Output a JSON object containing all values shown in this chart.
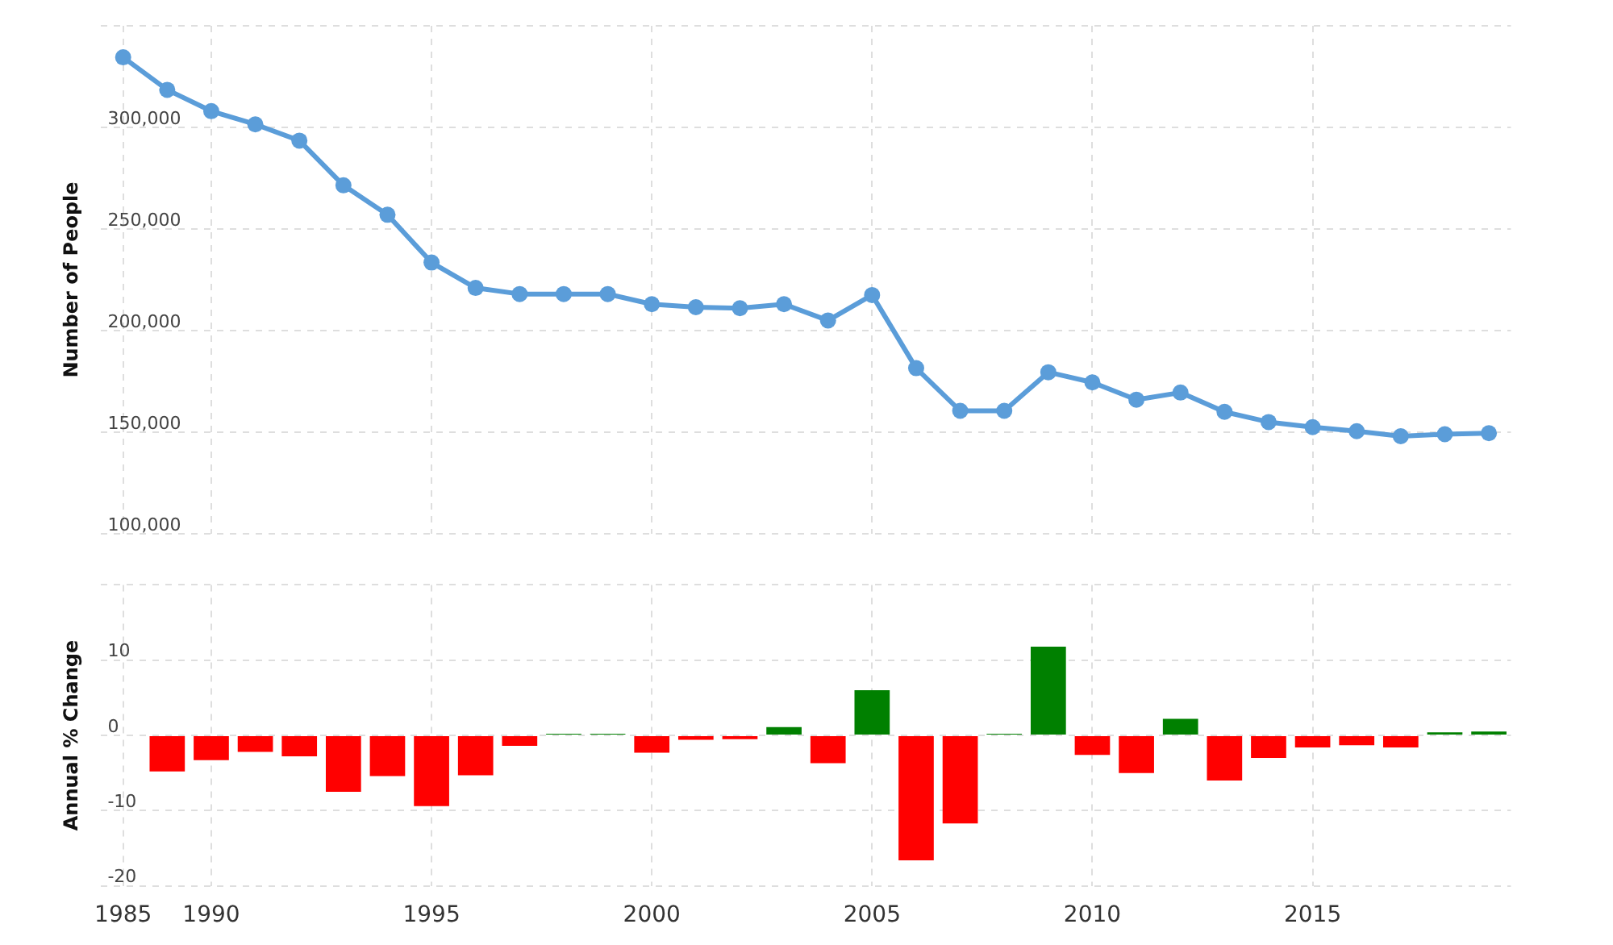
{
  "chart_data": [
    {
      "type": "line",
      "categories": [
        "1985",
        null,
        "1990",
        null,
        null,
        null,
        null,
        "1995",
        null,
        null,
        null,
        null,
        "2000",
        null,
        null,
        null,
        null,
        "2005",
        null,
        null,
        null,
        null,
        "2010",
        null,
        null,
        null,
        null,
        "2015",
        null,
        null,
        null,
        null
      ],
      "values": [
        334500,
        318500,
        308000,
        301500,
        293500,
        271500,
        257000,
        233500,
        221000,
        218000,
        218000,
        218000,
        213000,
        211500,
        211000,
        213000,
        205000,
        217500,
        181500,
        160500,
        160500,
        179500,
        174500,
        166000,
        169500,
        160000,
        155000,
        152500,
        150500,
        148000,
        149000,
        149500
      ],
      "color": "#5b9dd9",
      "marker": "circle",
      "ylabel": "Number of People",
      "ylim": [
        100000,
        350000
      ],
      "yticks": [
        {
          "value": 100000,
          "label": "100,000"
        },
        {
          "value": 150000,
          "label": "150,000"
        },
        {
          "value": 200000,
          "label": "200,000"
        },
        {
          "value": 250000,
          "label": "250,000"
        },
        {
          "value": 300000,
          "label": "300,000"
        },
        {
          "value": 350000,
          "label": null
        }
      ],
      "grid": true,
      "tick_labels": "y"
    },
    {
      "type": "bar",
      "categories": [
        "1985",
        null,
        "1990",
        null,
        null,
        null,
        null,
        "1995",
        null,
        null,
        null,
        null,
        "2000",
        null,
        null,
        null,
        null,
        "2005",
        null,
        null,
        null,
        null,
        "2010",
        null,
        null,
        null,
        null,
        "2015",
        null,
        null,
        null,
        null
      ],
      "values": [
        null,
        -4.8,
        -3.3,
        -2.2,
        -2.8,
        -7.5,
        -5.4,
        -9.4,
        -5.3,
        -1.4,
        0.2,
        0.2,
        -2.3,
        -0.6,
        -0.5,
        1.1,
        -3.7,
        6.0,
        -16.6,
        -11.7,
        0.2,
        11.8,
        -2.6,
        -5.0,
        2.2,
        -6.0,
        -3.0,
        -1.6,
        -1.3,
        -1.6,
        0.4,
        0.5
      ],
      "colors": [
        null,
        "#ff0000",
        "#ff0000",
        "#ff0000",
        "#ff0000",
        "#ff0000",
        "#ff0000",
        "#ff0000",
        "#ff0000",
        "#ff0000",
        "#008000",
        "#008000",
        "#ff0000",
        "#ff0000",
        "#ff0000",
        "#008000",
        "#ff0000",
        "#008000",
        "#ff0000",
        "#ff0000",
        "#008000",
        "#008000",
        "#ff0000",
        "#ff0000",
        "#008000",
        "#ff0000",
        "#ff0000",
        "#ff0000",
        "#ff0000",
        "#ff0000",
        "#008000",
        "#008000"
      ],
      "ylabel": "Annual % Change",
      "ylim": [
        -20,
        20
      ],
      "yticks": [
        -20,
        -10,
        0,
        10,
        {
          "value": 20,
          "label": null
        }
      ],
      "grid": true
    }
  ]
}
